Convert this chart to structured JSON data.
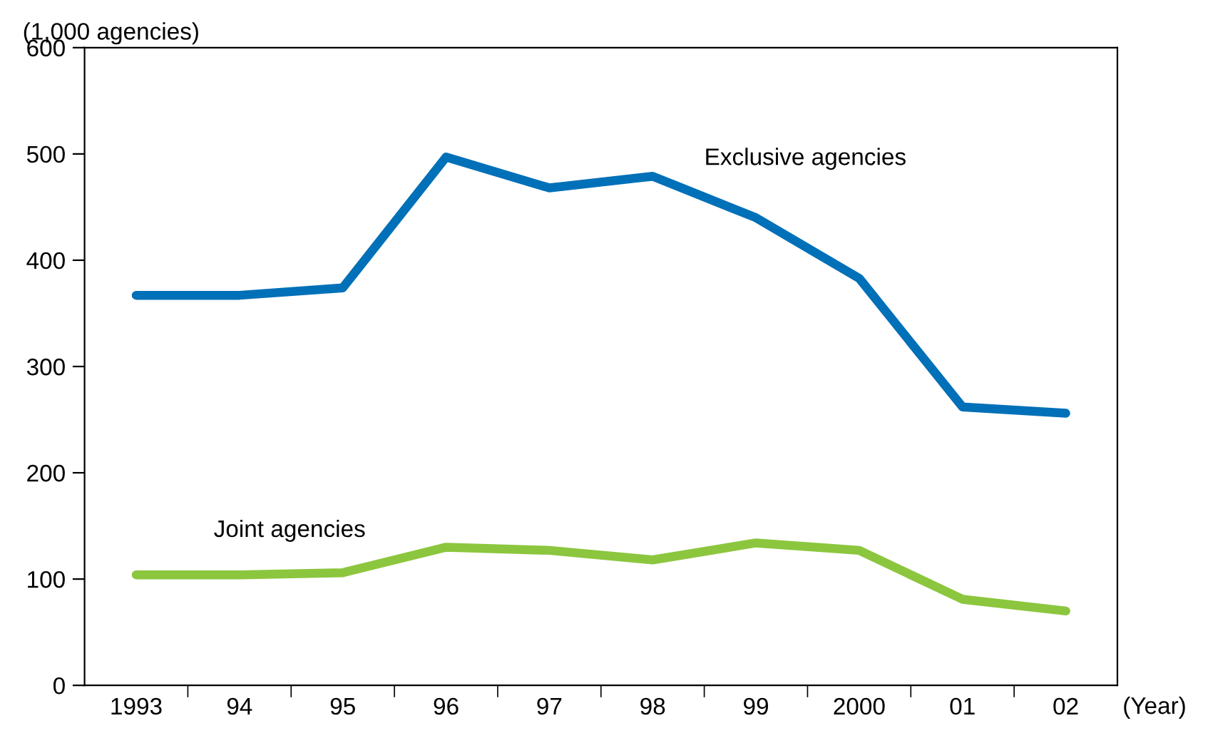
{
  "chart_data": {
    "type": "line",
    "xlabel": "(Year)",
    "ylabel": "(1,000 agencies)",
    "categories": [
      "1993",
      "94",
      "95",
      "96",
      "97",
      "98",
      "99",
      "2000",
      "01",
      "02"
    ],
    "series": [
      {
        "name": "Exclusive agencies",
        "color": "#0070b8",
        "values": [
          367,
          367,
          374,
          497,
          468,
          479,
          440,
          383,
          262,
          256
        ]
      },
      {
        "name": "Joint agencies",
        "color": "#8cc63e",
        "values": [
          104,
          104,
          106,
          130,
          127,
          118,
          134,
          127,
          81,
          70
        ]
      }
    ],
    "ylim": [
      0,
      600
    ],
    "yticks": [
      0,
      100,
      200,
      300,
      400,
      500,
      600
    ],
    "grid": false,
    "legend": false,
    "marker": "none",
    "line_style": "solid"
  }
}
